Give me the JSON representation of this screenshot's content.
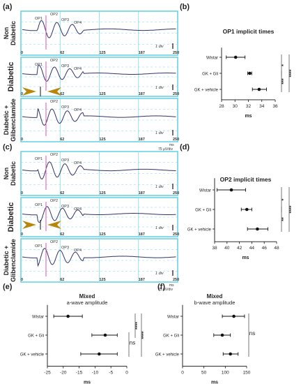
{
  "panel_labels": {
    "a": "(a)",
    "b": "(b)",
    "c": "(c)",
    "d": "(d)",
    "e": "(e)",
    "f": "(f)"
  },
  "erg": {
    "x_ticks": [
      "0",
      "62",
      "125",
      "187",
      "250"
    ],
    "scale": "1 div",
    "units_ms": "ms",
    "units_uv": "75 µV/div",
    "row_labels": {
      "non": [
        "Non",
        "Diabetic"
      ],
      "dia": [
        "Diabetic"
      ],
      "gli": [
        "Diabetic +",
        "Glibenclamide"
      ]
    },
    "peaks": {
      "op1": "OP1",
      "op2": "OP2",
      "op3": "OP3",
      "op4": "OP4"
    },
    "colors": {
      "frame": "#5fd0e0",
      "grid": "#7fd8e8",
      "trace": "#33336b",
      "accent": "#e64fb4",
      "arrow": "#b8860b"
    }
  },
  "chart_data": [
    {
      "id": "b",
      "type": "scatter",
      "title": "OP1 implicit times",
      "xlabel": "ms",
      "categories": [
        "Wistar",
        "GK + Gli",
        "GK + vehicle"
      ],
      "values": [
        30.1,
        32.2,
        33.6
      ],
      "err_low": [
        28.7,
        31.9,
        32.6
      ],
      "err_high": [
        31.5,
        32.5,
        34.7
      ],
      "xlim": [
        28,
        36
      ],
      "xticks": [
        "28",
        "30",
        "32",
        "34",
        "36"
      ],
      "sig": [
        "*",
        "****",
        "***"
      ]
    },
    {
      "id": "d",
      "type": "scatter",
      "title": "OP2 implicit times",
      "xlabel": "ms",
      "categories": [
        "Wistar",
        "GK + Gli",
        "GK + vehicle"
      ],
      "values": [
        40.7,
        43.2,
        44.9
      ],
      "err_low": [
        38.4,
        42.3,
        43.3
      ],
      "err_high": [
        43.0,
        44.0,
        46.6
      ],
      "xlim": [
        38,
        48
      ],
      "xticks": [
        "38",
        "40",
        "42",
        "44",
        "46",
        "48"
      ],
      "sig": [
        "*",
        "****",
        "**"
      ]
    },
    {
      "id": "e",
      "type": "scatter",
      "title": "Mixed",
      "subtitle": "a-wave amplitude",
      "xlabel": "ms",
      "categories": [
        "Wistar",
        "GK + Gli",
        "GK + vehicle"
      ],
      "values": [
        -18.5,
        -6.8,
        -8.7
      ],
      "err_low": [
        -23.0,
        -11.0,
        -14.5
      ],
      "err_high": [
        -14.0,
        -3.0,
        -3.0
      ],
      "xlim": [
        -25,
        0
      ],
      "xticks": [
        "-25",
        "-20",
        "-15",
        "-10",
        "-5",
        "0"
      ],
      "sig": [
        "****",
        "****",
        "ns"
      ]
    },
    {
      "id": "f",
      "type": "scatter",
      "title": "Mixed",
      "subtitle": "b-wave amplitude",
      "xlabel": "ms",
      "categories": [
        "Wistar",
        "GK + Gli",
        "GK + vehicle"
      ],
      "values": [
        120,
        93,
        112
      ],
      "err_low": [
        93,
        73,
        95
      ],
      "err_high": [
        145,
        112,
        130
      ],
      "xlim": [
        0,
        150
      ],
      "xticks": [
        "0",
        "50",
        "100",
        "150"
      ],
      "sig": [
        "ns"
      ]
    }
  ]
}
